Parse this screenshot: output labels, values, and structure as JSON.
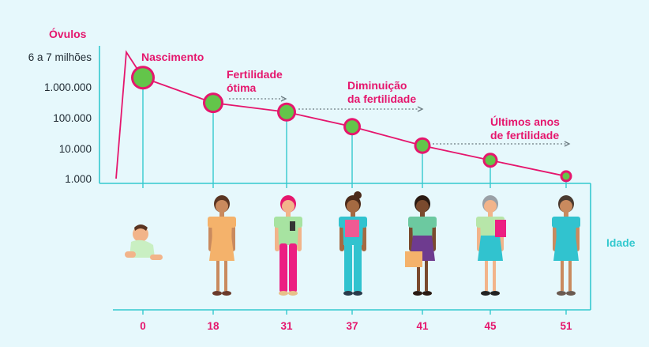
{
  "chart_data": {
    "type": "line",
    "ylabel": "Óvulos",
    "xlabel": "Idade",
    "y_scale": "log",
    "y_ticks": [
      {
        "value": 6500000,
        "label": "6 a 7 milhões"
      },
      {
        "value": 1000000,
        "label": "1.000.000"
      },
      {
        "value": 100000,
        "label": "100.000"
      },
      {
        "value": 10000,
        "label": "10.000"
      },
      {
        "value": 1000,
        "label": "1.000"
      }
    ],
    "x": [
      0,
      18,
      31,
      37,
      41,
      45,
      51
    ],
    "x_tick_labels": [
      "0",
      "18",
      "31",
      "37",
      "41",
      "45",
      "51"
    ],
    "values": [
      2000000,
      300000,
      150000,
      50000,
      12000,
      4000,
      1200
    ],
    "annotations": [
      {
        "text": "Nascimento",
        "x": 0
      },
      {
        "text": "Fertilidade ótima",
        "x": 18
      },
      {
        "text": "Diminuição da fertilidade",
        "x": 31
      },
      {
        "text": "Últimos anos de fertilidade",
        "x": 41
      }
    ],
    "grid": false,
    "legend": "none"
  },
  "colors": {
    "line": "#e5166d",
    "marker_fill": "#63c54a",
    "axis": "#34c9cf",
    "axis_label": "#e5166d",
    "tick_text": "#1f2a33",
    "arrow": "#6b7a80"
  },
  "figures": [
    "baby",
    "woman-18",
    "woman-31",
    "woman-37",
    "woman-41",
    "woman-45",
    "woman-51"
  ]
}
